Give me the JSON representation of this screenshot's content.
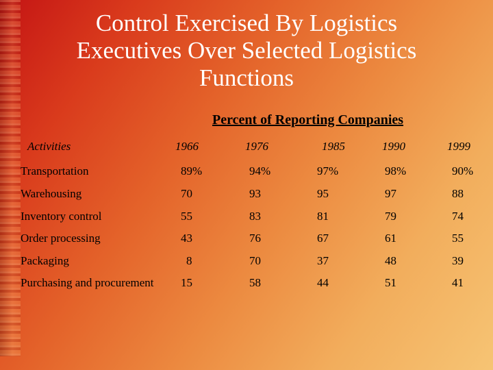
{
  "title_lines": [
    "Control Exercised By Logistics",
    "Executives Over Selected Logistics",
    "Functions"
  ],
  "subtitle": "Percent of Reporting Companies",
  "table": {
    "activities_header": "Activities",
    "years": [
      "1966",
      "1976",
      "1985",
      "1990",
      "1999"
    ],
    "rows": [
      {
        "label": "Transportation",
        "values": [
          "89%",
          "94%",
          "97%",
          "98%",
          "90%"
        ]
      },
      {
        "label": "Warehousing",
        "values": [
          "70",
          "93",
          "95",
          "97",
          "88"
        ]
      },
      {
        "label": "Inventory control",
        "values": [
          "55",
          "83",
          "81",
          "79",
          "74"
        ]
      },
      {
        "label": "Order processing",
        "values": [
          "43",
          "76",
          "67",
          "61",
          "55"
        ]
      },
      {
        "label": "Packaging",
        "values": [
          "8",
          "70",
          "37",
          "48",
          "39"
        ]
      },
      {
        "label": "Purchasing and procurement",
        "values": [
          "15",
          "58",
          "44",
          "51",
          "41"
        ]
      }
    ]
  }
}
